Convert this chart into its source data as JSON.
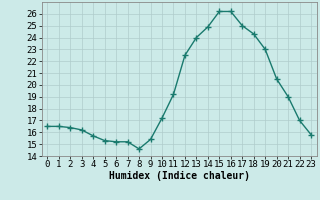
{
  "x": [
    0,
    1,
    2,
    3,
    4,
    5,
    6,
    7,
    8,
    9,
    10,
    11,
    12,
    13,
    14,
    15,
    16,
    17,
    18,
    19,
    20,
    21,
    22,
    23
  ],
  "y": [
    16.5,
    16.5,
    16.4,
    16.2,
    15.7,
    15.3,
    15.2,
    15.2,
    14.6,
    15.4,
    17.2,
    19.2,
    22.5,
    24.0,
    24.9,
    26.2,
    26.2,
    25.0,
    24.3,
    23.0,
    20.5,
    19.0,
    17.0,
    15.8
  ],
  "line_color": "#1a7a6e",
  "marker": "+",
  "marker_size": 4,
  "line_width": 1.0,
  "bg_color": "#cceae8",
  "grid_color": "#b0cccc",
  "xlabel": "Humidex (Indice chaleur)",
  "ylim": [
    14,
    27
  ],
  "yticks": [
    14,
    15,
    16,
    17,
    18,
    19,
    20,
    21,
    22,
    23,
    24,
    25,
    26
  ],
  "xticks": [
    0,
    1,
    2,
    3,
    4,
    5,
    6,
    7,
    8,
    9,
    10,
    11,
    12,
    13,
    14,
    15,
    16,
    17,
    18,
    19,
    20,
    21,
    22,
    23
  ],
  "xlabel_fontsize": 7,
  "tick_fontsize": 6.5
}
